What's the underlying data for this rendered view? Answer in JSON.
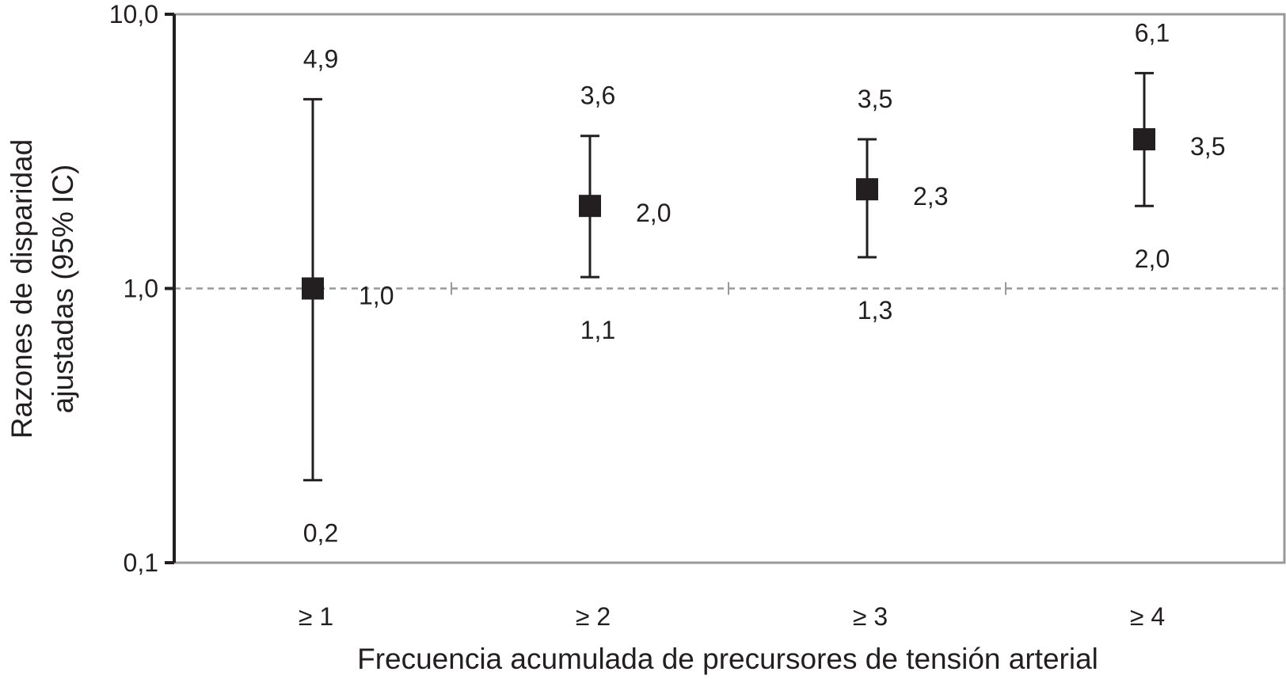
{
  "chart_data": {
    "type": "scatter",
    "categories": [
      "≥ 1",
      "≥ 2",
      "≥ 3",
      "≥ 4"
    ],
    "series": [
      {
        "values": [
          1.0,
          2.0,
          2.3,
          3.5
        ],
        "ci_low": [
          0.2,
          1.1,
          1.3,
          2.0
        ],
        "ci_high": [
          4.9,
          3.6,
          3.5,
          6.1
        ],
        "value_labels": [
          "1,0",
          "2,0",
          "2,3",
          "3,5"
        ],
        "ci_low_labels": [
          "0,2",
          "1,1",
          "1,3",
          "2,0"
        ],
        "ci_high_labels": [
          "4,9",
          "3,6",
          "3,5",
          "6,1"
        ]
      }
    ],
    "ylabel_lines": [
      "Razones de disparidad",
      "ajustadas (95% IC)"
    ],
    "xlabel": "Frecuencia acumulada de precursores de tensión arterial",
    "y_scale": "log",
    "ylim": [
      0.1,
      10.0
    ],
    "y_ticks": [
      0.1,
      1.0,
      10.0
    ],
    "y_tick_labels": [
      "0,1",
      "1,0",
      "10,0"
    ],
    "reference_line": 1.0,
    "grid": false,
    "legend": "none",
    "colors": {
      "marker": "#231f20",
      "axis": "#231f20",
      "frame": "#999999",
      "reference_line": "#999999"
    }
  }
}
